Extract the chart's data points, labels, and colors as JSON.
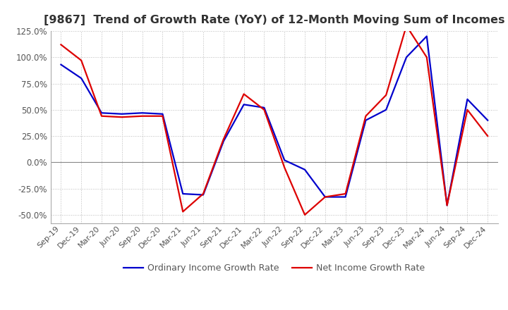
{
  "title": "[9867]  Trend of Growth Rate (YoY) of 12-Month Moving Sum of Incomes",
  "title_fontsize": 11.5,
  "legend_labels": [
    "Ordinary Income Growth Rate",
    "Net Income Growth Rate"
  ],
  "legend_colors": [
    "#0000cc",
    "#dd0000"
  ],
  "x_labels": [
    "Sep-19",
    "Dec-19",
    "Mar-20",
    "Jun-20",
    "Sep-20",
    "Dec-20",
    "Mar-21",
    "Jun-21",
    "Sep-21",
    "Dec-21",
    "Mar-22",
    "Jun-22",
    "Sep-22",
    "Dec-22",
    "Mar-23",
    "Jun-23",
    "Sep-23",
    "Dec-23",
    "Mar-24",
    "Jun-24",
    "Sep-24",
    "Dec-24"
  ],
  "ylim": [
    -0.58,
    0.145
  ],
  "yticks": [
    -0.5,
    -0.25,
    0.0,
    0.25,
    0.5,
    0.75,
    1.0,
    1.25
  ],
  "ordinary_income": [
    0.93,
    0.8,
    0.47,
    0.46,
    0.47,
    0.46,
    -0.3,
    -0.31,
    0.2,
    0.55,
    0.52,
    0.02,
    -0.07,
    -0.33,
    -0.33,
    0.4,
    0.5,
    1.0,
    1.2,
    -0.41,
    0.6,
    0.4
  ],
  "net_income": [
    1.12,
    0.97,
    0.44,
    0.43,
    0.44,
    0.44,
    -0.47,
    -0.3,
    0.22,
    0.65,
    0.5,
    -0.05,
    -0.5,
    -0.33,
    -0.3,
    0.44,
    0.64,
    1.3,
    1.0,
    -0.41,
    0.5,
    0.25
  ],
  "background_color": "#ffffff",
  "grid_color": "#bbbbbb",
  "grid_style": "dotted",
  "line_width": 1.6
}
